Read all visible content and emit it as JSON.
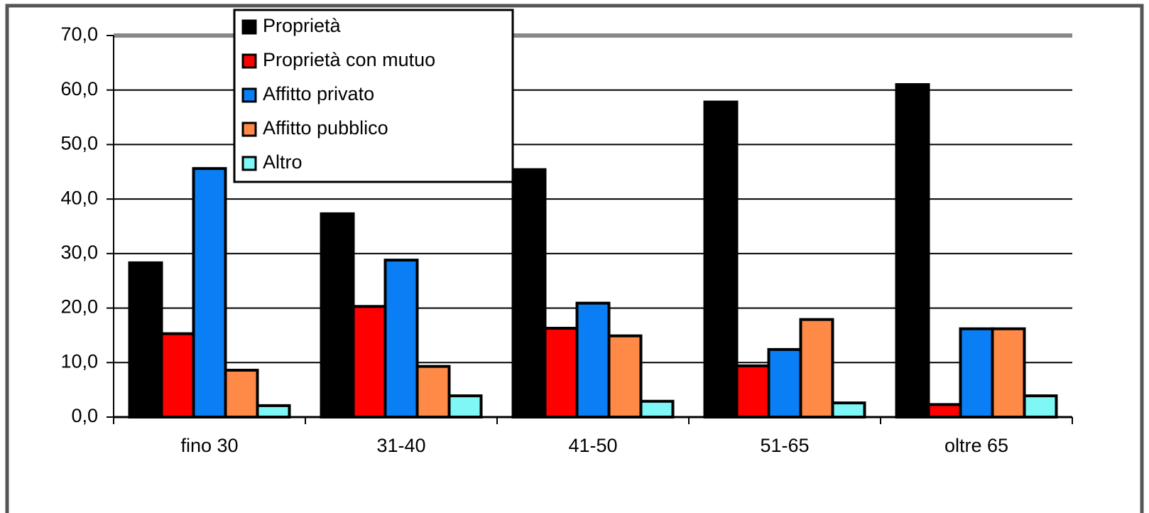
{
  "chart_data": {
    "type": "bar",
    "categories": [
      "fino 30",
      "31-40",
      "41-50",
      "51-65",
      "oltre 65"
    ],
    "series": [
      {
        "name": "Proprietà",
        "color": "#000000",
        "values": [
          28.3,
          37.3,
          45.4,
          57.8,
          61.0
        ]
      },
      {
        "name": "Proprietà con mutuo",
        "color": "#ff0000",
        "values": [
          15.3,
          20.3,
          16.3,
          9.4,
          2.3
        ]
      },
      {
        "name": "Affitto privato",
        "color": "#0a7ff5",
        "values": [
          45.6,
          28.8,
          20.9,
          12.4,
          16.2
        ]
      },
      {
        "name": "Affitto pubblico",
        "color": "#ff8a48",
        "values": [
          8.6,
          9.3,
          14.9,
          17.9,
          16.2
        ]
      },
      {
        "name": "Altro",
        "color": "#7ff7f7",
        "values": [
          2.1,
          3.9,
          2.9,
          2.6,
          3.9
        ]
      }
    ],
    "ylim": [
      0,
      70
    ],
    "yticks": [
      {
        "value": 0,
        "label": "0,0"
      },
      {
        "value": 10,
        "label": "10,0"
      },
      {
        "value": 20,
        "label": "20,0"
      },
      {
        "value": 30,
        "label": "30,0"
      },
      {
        "value": 40,
        "label": "40,0"
      },
      {
        "value": 50,
        "label": "50,0"
      },
      {
        "value": 60,
        "label": "60,0"
      },
      {
        "value": 70,
        "label": "70,0"
      }
    ],
    "grid": true
  }
}
